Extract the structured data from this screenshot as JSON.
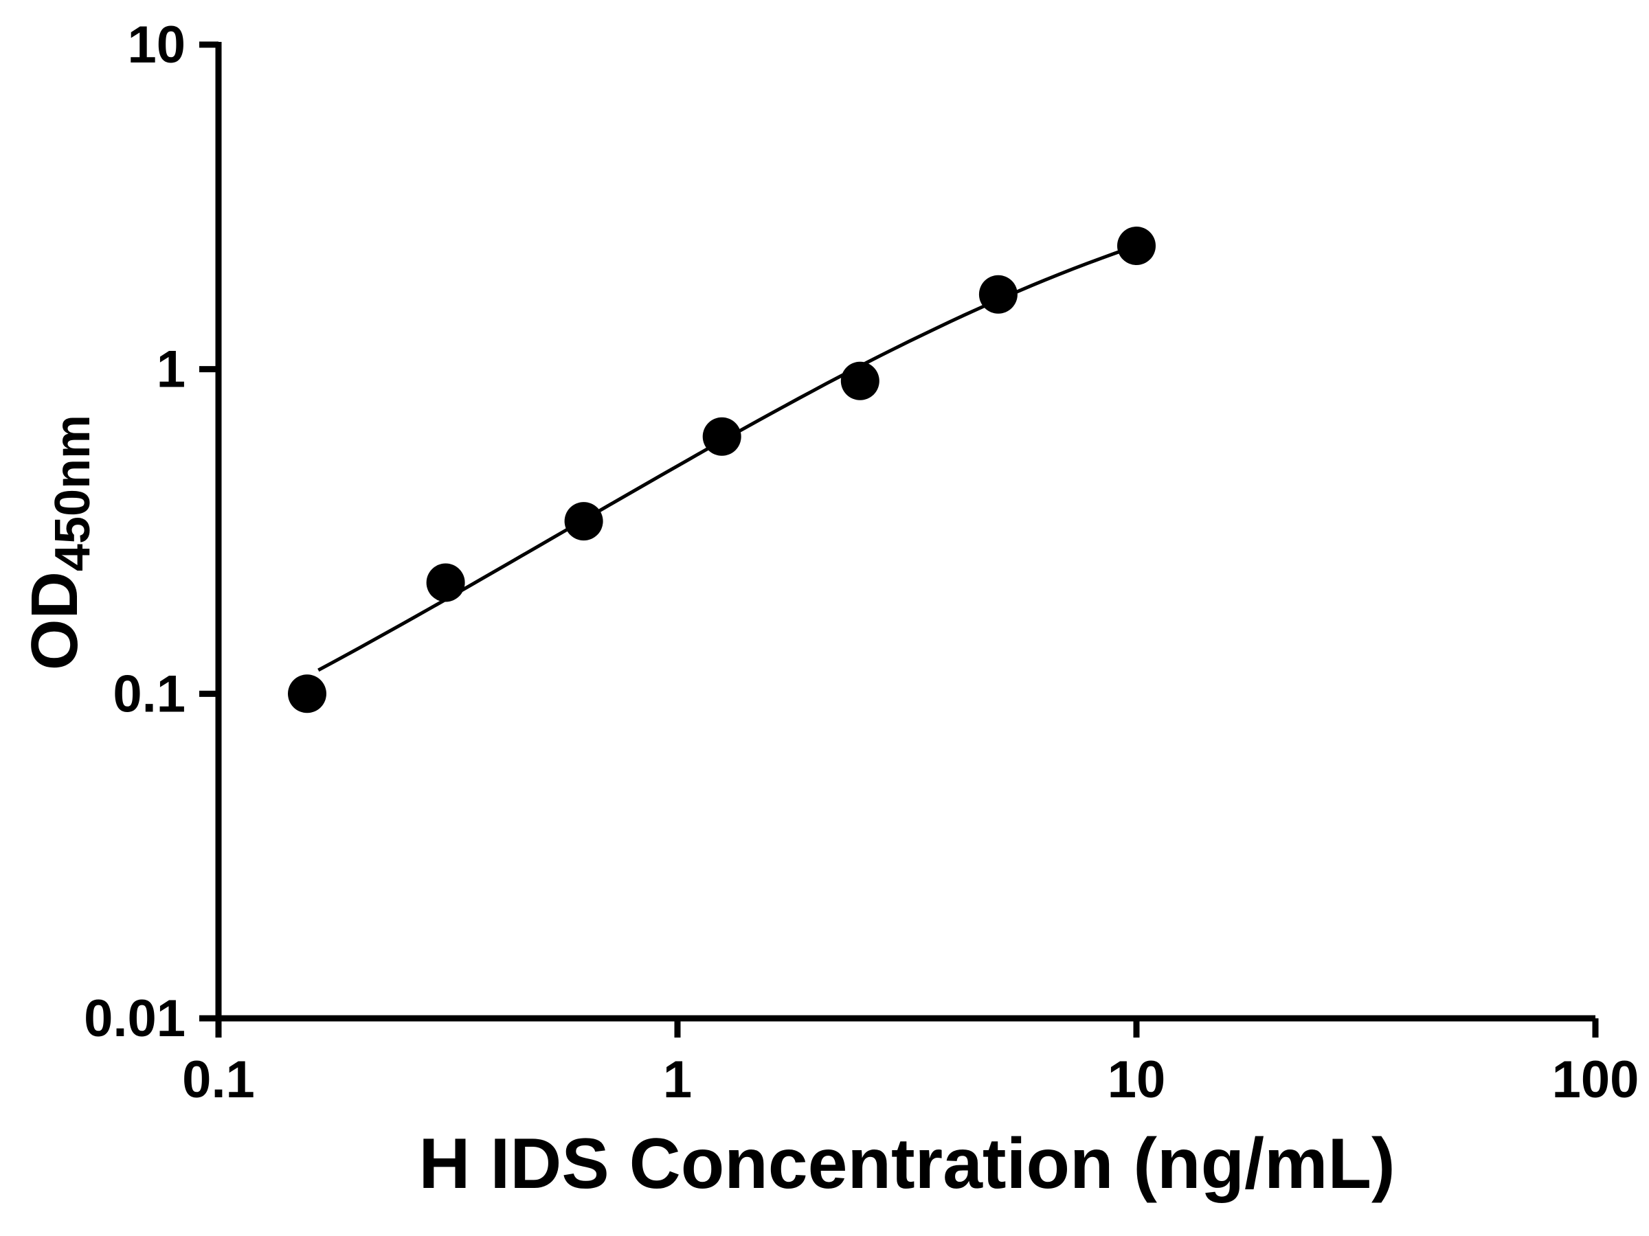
{
  "chart_data": {
    "type": "scatter",
    "title": "",
    "xlabel": "H IDS Concentration (ng/mL)",
    "ylabel_main": "OD",
    "ylabel_sub": "450nm",
    "x_scale": "log",
    "y_scale": "log",
    "xlim": [
      0.1,
      100
    ],
    "ylim": [
      0.01,
      10
    ],
    "grid": false,
    "legend": null,
    "axis_color": "#000000",
    "marker_color": "#000000",
    "line_color": "#000000",
    "background_color": "#ffffff",
    "x_ticks": [
      {
        "value": 0.1,
        "label": "0.1"
      },
      {
        "value": 1,
        "label": "1"
      },
      {
        "value": 10,
        "label": "10"
      },
      {
        "value": 100,
        "label": "100"
      }
    ],
    "y_ticks": [
      {
        "value": 0.01,
        "label": "0.01"
      },
      {
        "value": 0.1,
        "label": "0.1"
      },
      {
        "value": 1,
        "label": "1"
      },
      {
        "value": 10,
        "label": "10"
      }
    ],
    "points": [
      {
        "x": 0.156,
        "y": 0.1
      },
      {
        "x": 0.3125,
        "y": 0.22
      },
      {
        "x": 0.625,
        "y": 0.34
      },
      {
        "x": 1.25,
        "y": 0.62
      },
      {
        "x": 2.5,
        "y": 0.92
      },
      {
        "x": 5,
        "y": 1.7
      },
      {
        "x": 10,
        "y": 2.4
      }
    ],
    "fit_curve_4pl": {
      "A": 0.02,
      "D": 5.0,
      "C": 11.0,
      "B": 0.93,
      "x_start": 0.165,
      "x_end": 10.3
    },
    "marker_radius": 28
  }
}
